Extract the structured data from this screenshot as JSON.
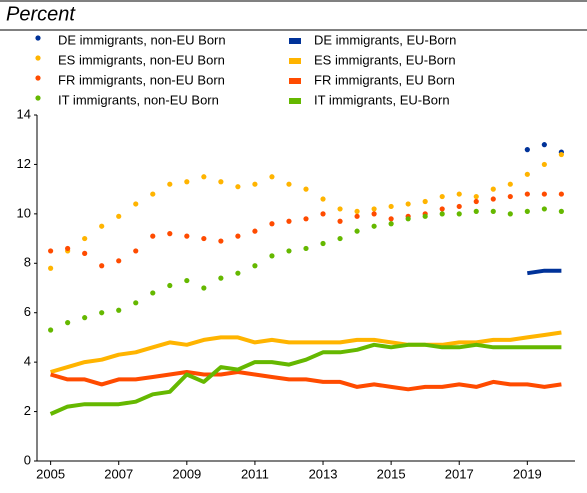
{
  "chart_data": {
    "type": "line",
    "title": "Percent",
    "x": [
      2005,
      2005.5,
      2006,
      2006.5,
      2007,
      2007.5,
      2008,
      2008.5,
      2009,
      2009.5,
      2010,
      2010.5,
      2011,
      2011.5,
      2012,
      2012.5,
      2013,
      2013.5,
      2014,
      2014.5,
      2015,
      2015.5,
      2016,
      2016.5,
      2017,
      2017.5,
      2018,
      2018.5,
      2019,
      2019.5,
      2020
    ],
    "xlim": [
      2004.6,
      2020.4
    ],
    "xticks": [
      2005,
      2007,
      2009,
      2011,
      2013,
      2015,
      2017,
      2019
    ],
    "ylim": [
      0,
      14
    ],
    "yticks": [
      0,
      2,
      4,
      6,
      8,
      10,
      12,
      14
    ],
    "grid": false,
    "series": [
      {
        "name": "DE immigrants, non-EU Born",
        "color": "#003299",
        "style": "dotted",
        "values": [
          null,
          null,
          null,
          null,
          null,
          null,
          null,
          null,
          null,
          null,
          null,
          null,
          null,
          null,
          null,
          null,
          null,
          null,
          null,
          null,
          null,
          null,
          null,
          null,
          null,
          null,
          null,
          null,
          12.6,
          12.8,
          12.5
        ]
      },
      {
        "name": "DE immigrants, EU-Born",
        "color": "#003299",
        "style": "solid",
        "values": [
          null,
          null,
          null,
          null,
          null,
          null,
          null,
          null,
          null,
          null,
          null,
          null,
          null,
          null,
          null,
          null,
          null,
          null,
          null,
          null,
          null,
          null,
          null,
          null,
          null,
          null,
          null,
          null,
          7.6,
          7.7,
          7.7
        ]
      },
      {
        "name": "ES immigrants, non-EU Born",
        "color": "#ffb400",
        "style": "dotted",
        "values": [
          7.8,
          8.5,
          9.0,
          9.5,
          9.9,
          10.4,
          10.8,
          11.2,
          11.3,
          11.5,
          11.3,
          11.1,
          11.2,
          11.5,
          11.2,
          11.0,
          10.6,
          10.2,
          10.1,
          10.2,
          10.3,
          10.4,
          10.5,
          10.7,
          10.8,
          10.7,
          11.0,
          11.2,
          11.6,
          12.0,
          12.4
        ]
      },
      {
        "name": "ES immigrants, EU-Born",
        "color": "#ffb400",
        "style": "solid",
        "values": [
          3.6,
          3.8,
          4.0,
          4.1,
          4.3,
          4.4,
          4.6,
          4.8,
          4.7,
          4.9,
          5.0,
          5.0,
          4.8,
          4.9,
          4.8,
          4.8,
          4.8,
          4.8,
          4.9,
          4.9,
          4.8,
          4.7,
          4.7,
          4.7,
          4.8,
          4.8,
          4.9,
          4.9,
          5.0,
          5.1,
          5.2
        ]
      },
      {
        "name": "FR immigrants, non-EU Born",
        "color": "#ff4b00",
        "style": "dotted",
        "values": [
          8.5,
          8.6,
          8.4,
          7.9,
          8.1,
          8.5,
          9.1,
          9.2,
          9.1,
          9.0,
          8.9,
          9.1,
          9.3,
          9.6,
          9.7,
          9.8,
          10.0,
          9.7,
          9.9,
          10.0,
          9.8,
          9.9,
          10.0,
          10.2,
          10.3,
          10.5,
          10.6,
          10.7,
          10.8,
          10.8,
          10.8
        ]
      },
      {
        "name": "FR immigrants, EU Born",
        "color": "#ff4b00",
        "style": "solid",
        "values": [
          3.5,
          3.3,
          3.3,
          3.1,
          3.3,
          3.3,
          3.4,
          3.5,
          3.6,
          3.5,
          3.5,
          3.6,
          3.5,
          3.4,
          3.3,
          3.3,
          3.2,
          3.2,
          3.0,
          3.1,
          3.0,
          2.9,
          3.0,
          3.0,
          3.1,
          3.0,
          3.2,
          3.1,
          3.1,
          3.0,
          3.1
        ]
      },
      {
        "name": "IT immigrants, non-EU Born",
        "color": "#65b800",
        "style": "dotted",
        "values": [
          5.3,
          5.6,
          5.8,
          6.0,
          6.1,
          6.4,
          6.8,
          7.1,
          7.3,
          7.0,
          7.4,
          7.6,
          7.9,
          8.3,
          8.5,
          8.6,
          8.8,
          9.0,
          9.3,
          9.5,
          9.6,
          9.8,
          9.9,
          10.0,
          10.0,
          10.1,
          10.1,
          10.0,
          10.1,
          10.2,
          10.1
        ]
      },
      {
        "name": "IT immigrants, EU-Born",
        "color": "#65b800",
        "style": "solid",
        "values": [
          1.9,
          2.2,
          2.3,
          2.3,
          2.3,
          2.4,
          2.7,
          2.8,
          3.5,
          3.2,
          3.8,
          3.7,
          4.0,
          4.0,
          3.9,
          4.1,
          4.4,
          4.4,
          4.5,
          4.7,
          4.6,
          4.7,
          4.7,
          4.6,
          4.6,
          4.7,
          4.6,
          4.6,
          4.6,
          4.6,
          4.6
        ]
      }
    ]
  }
}
